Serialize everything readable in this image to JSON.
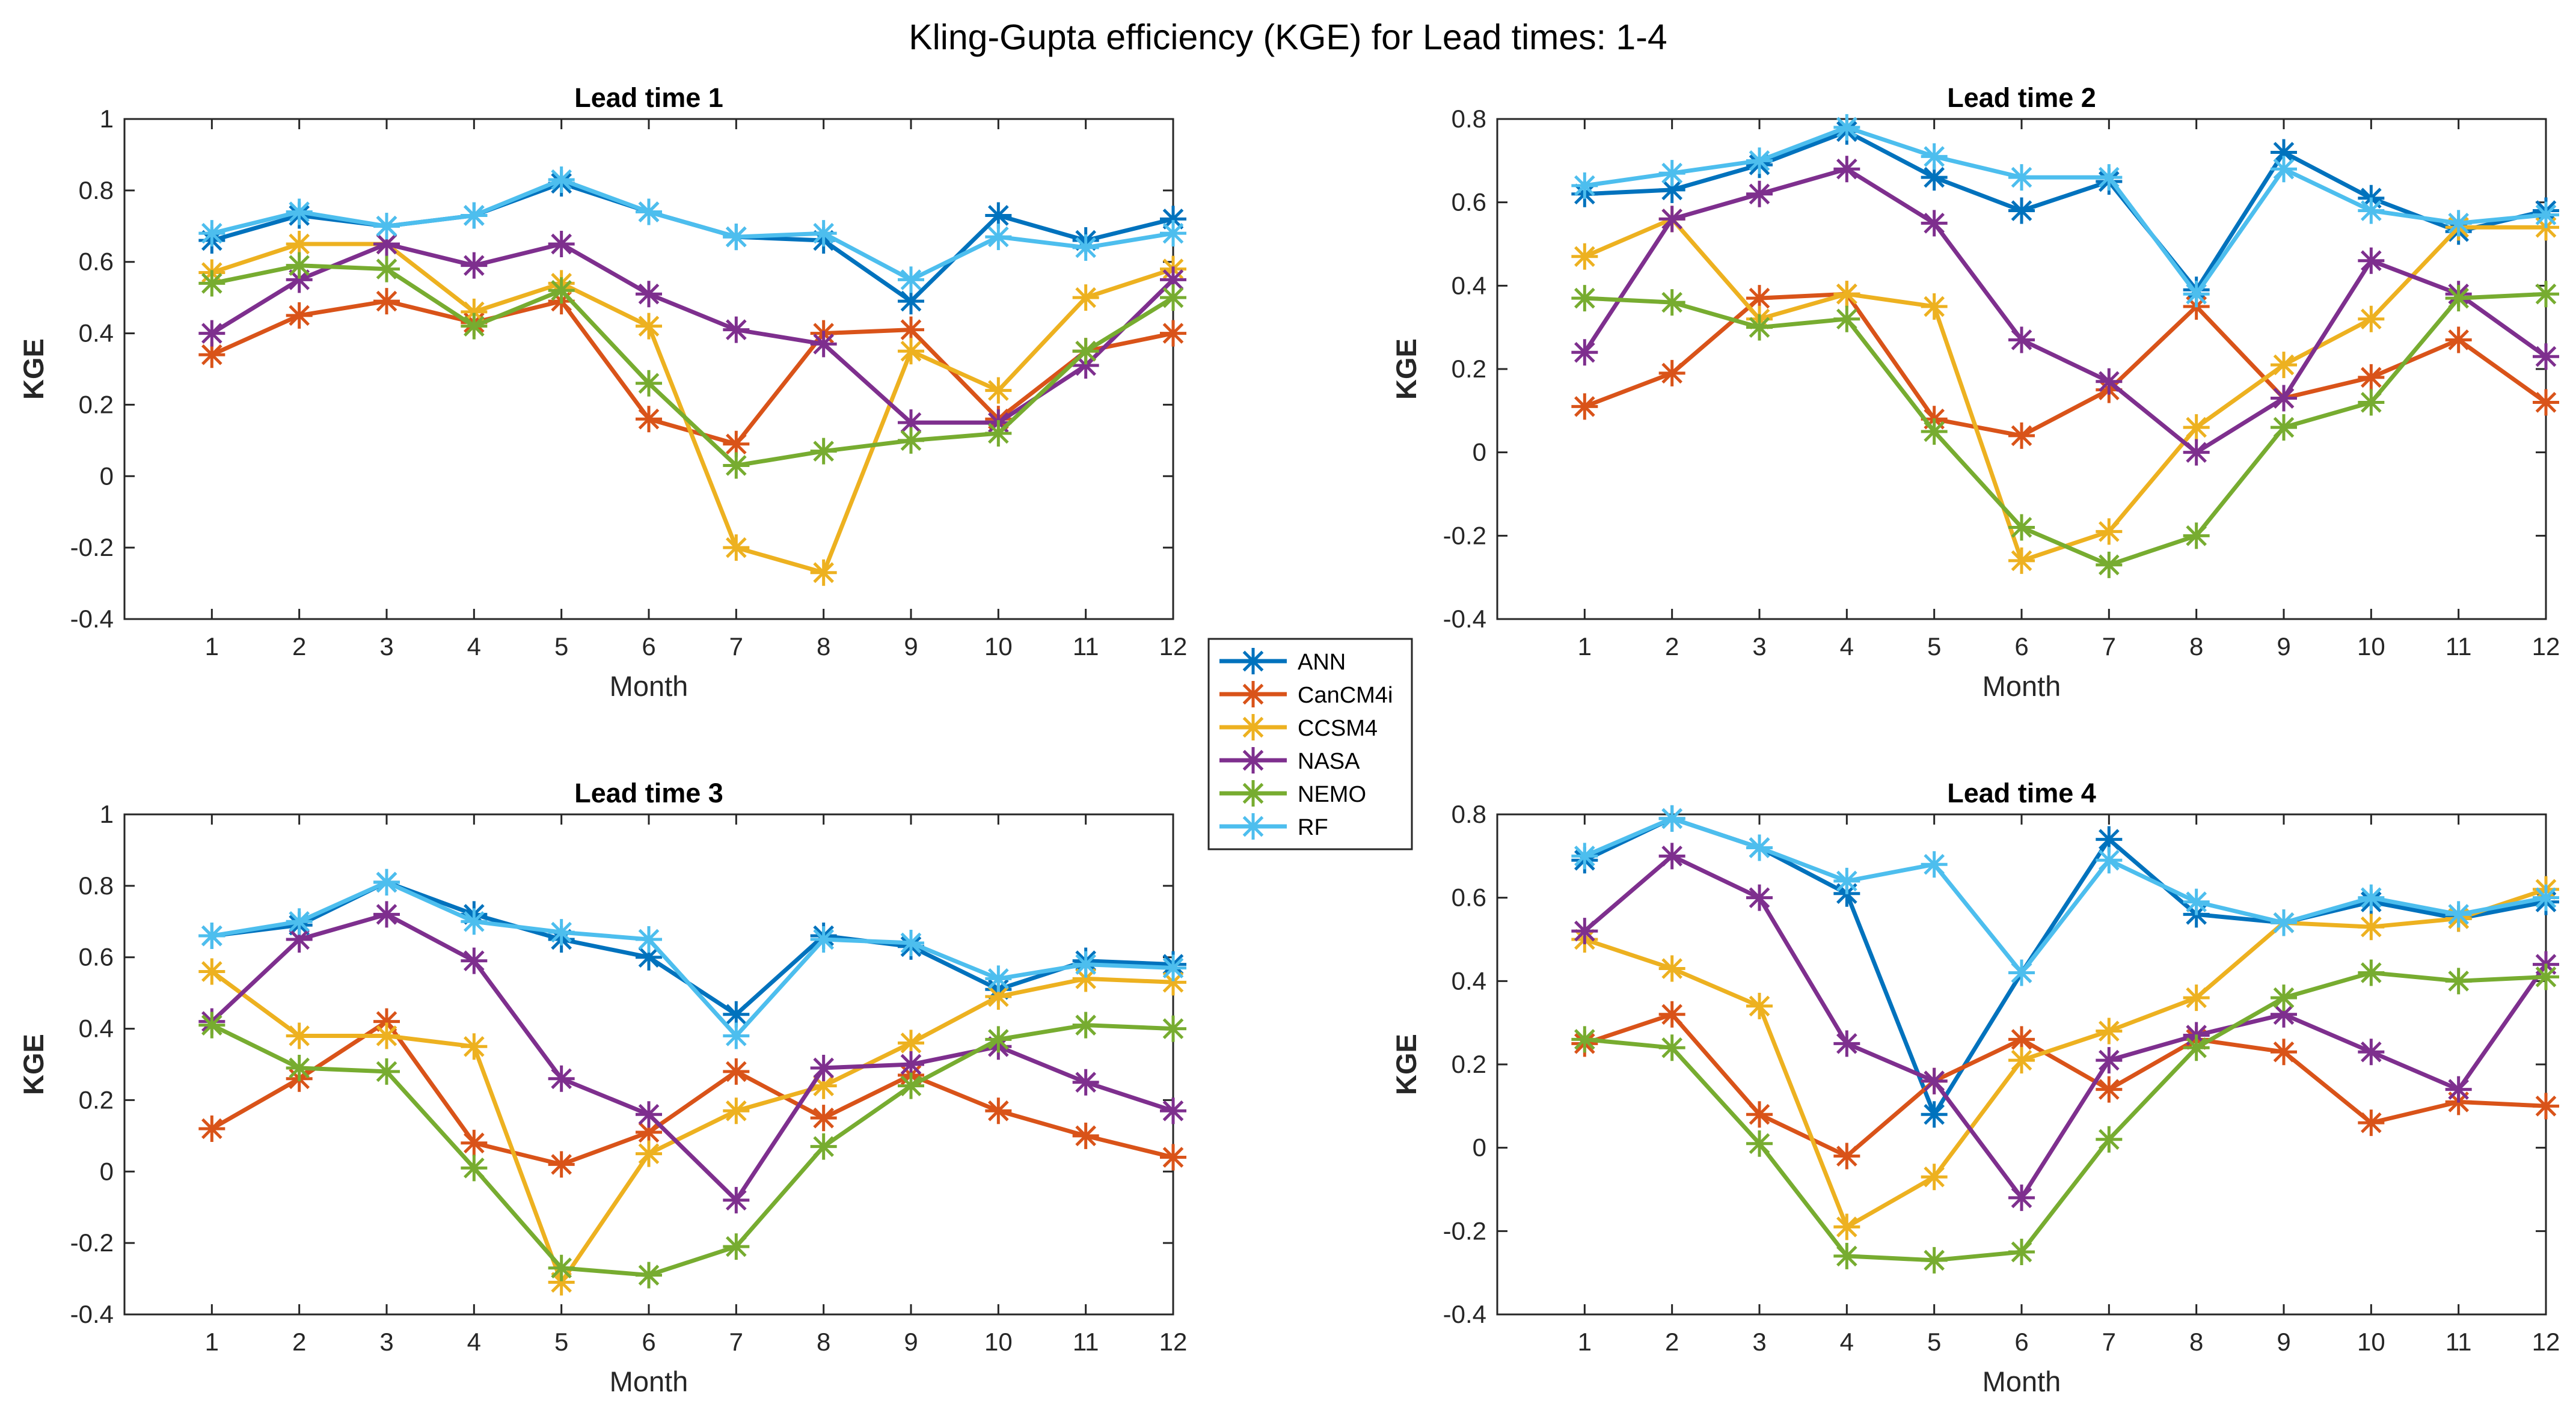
{
  "figure": {
    "title": "Kling-Gupta efficiency (KGE) for Lead times: 1-4"
  },
  "legend": {
    "placement": "center-between-panels",
    "entries": [
      "ANN",
      "CanCM4i",
      "CCSM4",
      "NASA",
      "NEMO",
      "RF"
    ]
  },
  "colors": {
    "ANN": "#0072BD",
    "CanCM4i": "#D95319",
    "CCSM4": "#EDB120",
    "NASA": "#7E2F8E",
    "NEMO": "#77AC30",
    "RF": "#4DBEEE"
  },
  "chart_data": [
    {
      "type": "line",
      "title": "Lead time 1",
      "xlabel": "Month",
      "ylabel": "KGE",
      "x": [
        1,
        2,
        3,
        4,
        5,
        6,
        7,
        8,
        9,
        10,
        11,
        12
      ],
      "xlim": [
        0,
        12
      ],
      "ylim": [
        -0.4,
        1
      ],
      "yticks": [
        -0.4,
        -0.2,
        0,
        0.2,
        0.4,
        0.6,
        0.8,
        1
      ],
      "ytick_labels": [
        "-0.4",
        "-0.2",
        "0",
        "0.2",
        "0.4",
        "0.6",
        "0.8",
        "1"
      ],
      "series": [
        {
          "name": "ANN",
          "values": [
            0.66,
            0.73,
            0.7,
            0.73,
            0.82,
            0.74,
            0.67,
            0.66,
            0.49,
            0.73,
            0.66,
            0.72
          ]
        },
        {
          "name": "CanCM4i",
          "values": [
            0.34,
            0.45,
            0.49,
            0.43,
            0.49,
            0.16,
            0.09,
            0.4,
            0.41,
            0.16,
            0.35,
            0.4
          ]
        },
        {
          "name": "CCSM4",
          "values": [
            0.57,
            0.65,
            0.65,
            0.46,
            0.54,
            0.42,
            -0.2,
            -0.27,
            0.35,
            0.24,
            0.5,
            0.58
          ]
        },
        {
          "name": "NASA",
          "values": [
            0.4,
            0.55,
            0.65,
            0.59,
            0.65,
            0.51,
            0.41,
            0.37,
            0.15,
            0.15,
            0.31,
            0.55
          ]
        },
        {
          "name": "NEMO",
          "values": [
            0.54,
            0.59,
            0.58,
            0.42,
            0.52,
            0.26,
            0.03,
            0.07,
            0.1,
            0.12,
            0.35,
            0.5
          ]
        },
        {
          "name": "RF",
          "values": [
            0.68,
            0.74,
            0.7,
            0.73,
            0.83,
            0.74,
            0.67,
            0.68,
            0.55,
            0.67,
            0.64,
            0.68
          ]
        }
      ]
    },
    {
      "type": "line",
      "title": "Lead time 2",
      "xlabel": "Month",
      "ylabel": "KGE",
      "x": [
        1,
        2,
        3,
        4,
        5,
        6,
        7,
        8,
        9,
        10,
        11,
        12
      ],
      "xlim": [
        0,
        12
      ],
      "ylim": [
        -0.4,
        0.8
      ],
      "yticks": [
        -0.4,
        -0.2,
        0,
        0.2,
        0.4,
        0.6,
        0.8
      ],
      "ytick_labels": [
        "-0.4",
        "-0.2",
        "0",
        "0.2",
        "0.4",
        "0.6",
        "0.8"
      ],
      "series": [
        {
          "name": "ANN",
          "values": [
            0.62,
            0.63,
            0.69,
            0.77,
            0.66,
            0.58,
            0.65,
            0.39,
            0.72,
            0.61,
            0.53,
            0.58
          ]
        },
        {
          "name": "CanCM4i",
          "values": [
            0.11,
            0.19,
            0.37,
            0.38,
            0.08,
            0.04,
            0.15,
            0.35,
            0.13,
            0.18,
            0.27,
            0.12
          ]
        },
        {
          "name": "CCSM4",
          "values": [
            0.47,
            0.56,
            0.32,
            0.38,
            0.35,
            -0.26,
            -0.19,
            0.06,
            0.21,
            0.32,
            0.54,
            0.54
          ]
        },
        {
          "name": "NASA",
          "values": [
            0.24,
            0.56,
            0.62,
            0.68,
            0.55,
            0.27,
            0.17,
            0.0,
            0.13,
            0.46,
            0.38,
            0.23
          ]
        },
        {
          "name": "NEMO",
          "values": [
            0.37,
            0.36,
            0.3,
            0.32,
            0.05,
            -0.18,
            -0.27,
            -0.2,
            0.06,
            0.12,
            0.37,
            0.38
          ]
        },
        {
          "name": "RF",
          "values": [
            0.64,
            0.67,
            0.7,
            0.78,
            0.71,
            0.66,
            0.66,
            0.38,
            0.68,
            0.58,
            0.55,
            0.57
          ]
        }
      ]
    },
    {
      "type": "line",
      "title": "Lead time 3",
      "xlabel": "Month",
      "ylabel": "KGE",
      "x": [
        1,
        2,
        3,
        4,
        5,
        6,
        7,
        8,
        9,
        10,
        11,
        12
      ],
      "xlim": [
        0,
        12
      ],
      "ylim": [
        -0.4,
        1
      ],
      "yticks": [
        -0.4,
        -0.2,
        0,
        0.2,
        0.4,
        0.6,
        0.8,
        1
      ],
      "ytick_labels": [
        "-0.4",
        "-0.2",
        "0",
        "0.2",
        "0.4",
        "0.6",
        "0.8",
        "1"
      ],
      "series": [
        {
          "name": "ANN",
          "values": [
            0.66,
            0.69,
            0.81,
            0.72,
            0.65,
            0.6,
            0.44,
            0.66,
            0.63,
            0.51,
            0.59,
            0.58
          ]
        },
        {
          "name": "CanCM4i",
          "values": [
            0.12,
            0.26,
            0.42,
            0.08,
            0.02,
            0.11,
            0.28,
            0.15,
            0.27,
            0.17,
            0.1,
            0.04
          ]
        },
        {
          "name": "CCSM4",
          "values": [
            0.56,
            0.38,
            0.38,
            0.35,
            -0.31,
            0.05,
            0.17,
            0.24,
            0.36,
            0.49,
            0.54,
            0.53
          ]
        },
        {
          "name": "NASA",
          "values": [
            0.42,
            0.65,
            0.72,
            0.59,
            0.26,
            0.16,
            -0.08,
            0.29,
            0.3,
            0.35,
            0.25,
            0.17
          ]
        },
        {
          "name": "NEMO",
          "values": [
            0.41,
            0.29,
            0.28,
            0.01,
            -0.27,
            -0.29,
            -0.21,
            0.07,
            0.24,
            0.37,
            0.41,
            0.4
          ]
        },
        {
          "name": "RF",
          "values": [
            0.66,
            0.7,
            0.81,
            0.7,
            0.67,
            0.65,
            0.38,
            0.65,
            0.64,
            0.54,
            0.58,
            0.57
          ]
        }
      ]
    },
    {
      "type": "line",
      "title": "Lead time 4",
      "xlabel": "Month",
      "ylabel": "KGE",
      "x": [
        1,
        2,
        3,
        4,
        5,
        6,
        7,
        8,
        9,
        10,
        11,
        12
      ],
      "xlim": [
        0,
        12
      ],
      "ylim": [
        -0.4,
        0.8
      ],
      "yticks": [
        -0.4,
        -0.2,
        0,
        0.2,
        0.4,
        0.6,
        0.8
      ],
      "ytick_labels": [
        "-0.4",
        "-0.2",
        "0",
        "0.2",
        "0.4",
        "0.6",
        "0.8"
      ],
      "series": [
        {
          "name": "ANN",
          "values": [
            0.69,
            0.79,
            0.72,
            0.61,
            0.08,
            0.42,
            0.74,
            0.56,
            0.54,
            0.59,
            0.55,
            0.59
          ]
        },
        {
          "name": "CanCM4i",
          "values": [
            0.25,
            0.32,
            0.08,
            -0.02,
            0.16,
            0.26,
            0.14,
            0.26,
            0.23,
            0.06,
            0.11,
            0.1
          ]
        },
        {
          "name": "CCSM4",
          "values": [
            0.5,
            0.43,
            0.34,
            -0.19,
            -0.07,
            0.21,
            0.28,
            0.36,
            0.54,
            0.53,
            0.55,
            0.62
          ]
        },
        {
          "name": "NASA",
          "values": [
            0.52,
            0.7,
            0.6,
            0.25,
            0.16,
            -0.12,
            0.21,
            0.27,
            0.32,
            0.23,
            0.14,
            0.44
          ]
        },
        {
          "name": "NEMO",
          "values": [
            0.26,
            0.24,
            0.01,
            -0.26,
            -0.27,
            -0.25,
            0.02,
            0.24,
            0.36,
            0.42,
            0.4,
            0.41
          ]
        },
        {
          "name": "RF",
          "values": [
            0.7,
            0.79,
            0.72,
            0.64,
            0.68,
            0.42,
            0.69,
            0.59,
            0.54,
            0.6,
            0.56,
            0.6
          ]
        }
      ]
    }
  ]
}
